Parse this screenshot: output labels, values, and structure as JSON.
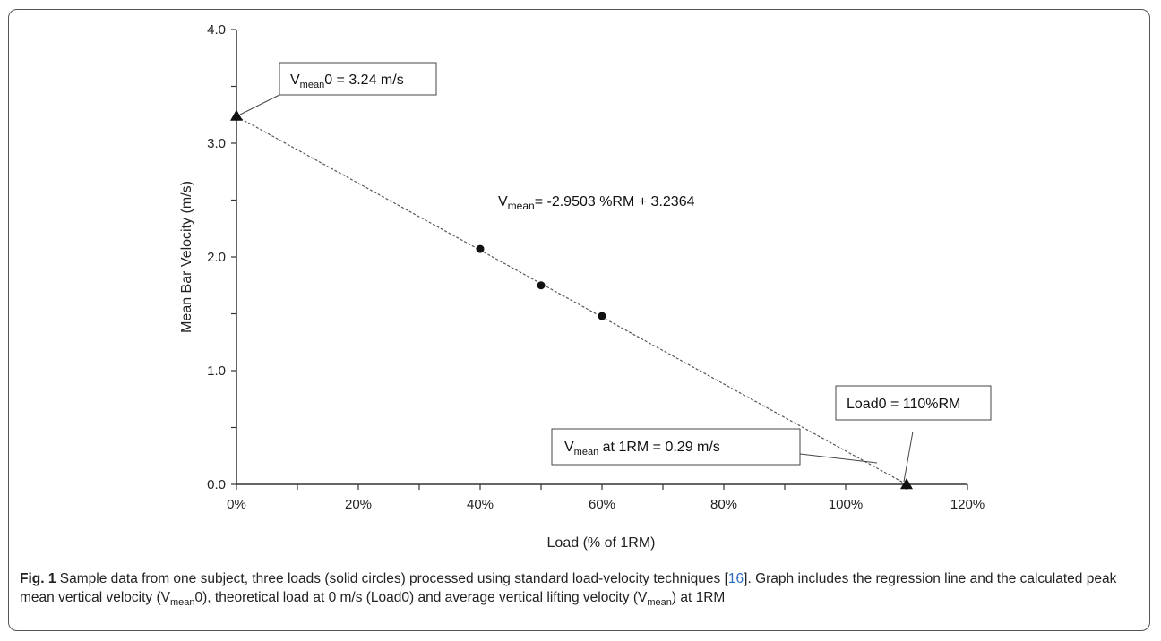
{
  "chart_data": {
    "type": "scatter",
    "xlabel": "Load (% of 1RM)",
    "ylabel": "Mean Bar Velocity (m/s)",
    "xlim": [
      0,
      120
    ],
    "ylim": [
      0,
      4
    ],
    "x_ticks": [
      "0%",
      "20%",
      "40%",
      "60%",
      "80%",
      "100%",
      "120%"
    ],
    "y_ticks": [
      "0.0",
      "1.0",
      "2.0",
      "3.0",
      "4.0"
    ],
    "grid": false,
    "points": [
      {
        "x": 40,
        "y": 2.07
      },
      {
        "x": 50,
        "y": 1.75
      },
      {
        "x": 60,
        "y": 1.48
      }
    ],
    "intercept_markers": [
      {
        "x": 0,
        "y": 3.24
      },
      {
        "x": 110,
        "y": 0
      }
    ],
    "regression": {
      "slope": -2.9503,
      "intercept": 3.2364,
      "equation_text": "= -2.9503 %RM + 3.2364"
    },
    "annotations": {
      "vmean0": {
        "text": "0 = 3.24 m/s"
      },
      "load0": {
        "text": "Load0 = 110%RM"
      },
      "vmean_1rm": {
        "text": " at 1RM = 0.29 m/s"
      },
      "v_prefix": "V",
      "sub_mean": "mean"
    }
  },
  "caption": {
    "fig_label": "Fig. 1",
    "text_a": " Sample data from one subject, three loads (solid circles) processed using standard load-velocity techniques [",
    "ref": "16",
    "text_b": "]. Graph includes the regression line and the calculated peak mean vertical velocity (V",
    "sub1": "mean",
    "text_c": "0), theoretical load at 0 m/s (Load0) and average vertical lifting velocity (V",
    "sub2": "mean",
    "text_d": ") at 1RM"
  }
}
